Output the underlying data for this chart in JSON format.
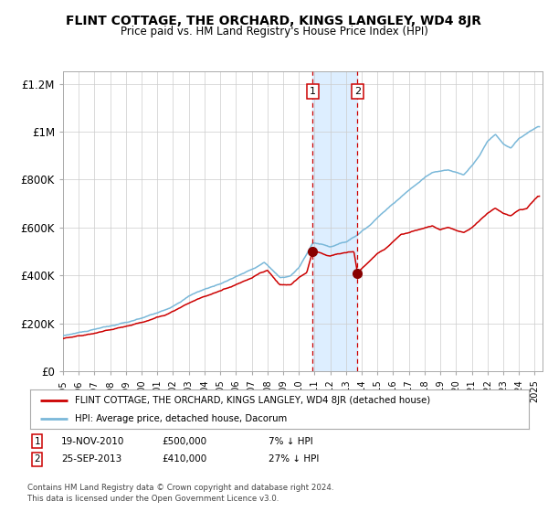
{
  "title": "FLINT COTTAGE, THE ORCHARD, KINGS LANGLEY, WD4 8JR",
  "subtitle": "Price paid vs. HM Land Registry's House Price Index (HPI)",
  "legend_line1": "FLINT COTTAGE, THE ORCHARD, KINGS LANGLEY, WD4 8JR (detached house)",
  "legend_line2": "HPI: Average price, detached house, Dacorum",
  "sale1_label": "1",
  "sale1_date": "19-NOV-2010",
  "sale1_price": "£500,000",
  "sale1_hpi": "7% ↓ HPI",
  "sale1_x": 2010.88,
  "sale1_y": 500000,
  "sale2_label": "2",
  "sale2_date": "25-SEP-2013",
  "sale2_price": "£410,000",
  "sale2_hpi": "27% ↓ HPI",
  "sale2_x": 2013.73,
  "sale2_y": 410000,
  "hpi_color": "#7ab8d9",
  "price_color": "#cc0000",
  "shade_color": "#ddeeff",
  "dashed_color": "#cc0000",
  "ylim": [
    0,
    1250000
  ],
  "xlim_start": 1995.0,
  "xlim_end": 2025.5,
  "footer": "Contains HM Land Registry data © Crown copyright and database right 2024.\nThis data is licensed under the Open Government Licence v3.0.",
  "yticks": [
    0,
    200000,
    400000,
    600000,
    800000,
    1000000,
    1200000
  ],
  "ytick_labels": [
    "£0",
    "£200K",
    "£400K",
    "£600K",
    "£800K",
    "£1M",
    "£1.2M"
  ],
  "xticks": [
    1995,
    1996,
    1997,
    1998,
    1999,
    2000,
    2001,
    2002,
    2003,
    2004,
    2005,
    2006,
    2007,
    2008,
    2009,
    2010,
    2011,
    2012,
    2013,
    2014,
    2015,
    2016,
    2017,
    2018,
    2019,
    2020,
    2021,
    2022,
    2023,
    2024,
    2025
  ],
  "background_color": "#ffffff",
  "grid_color": "#cccccc"
}
